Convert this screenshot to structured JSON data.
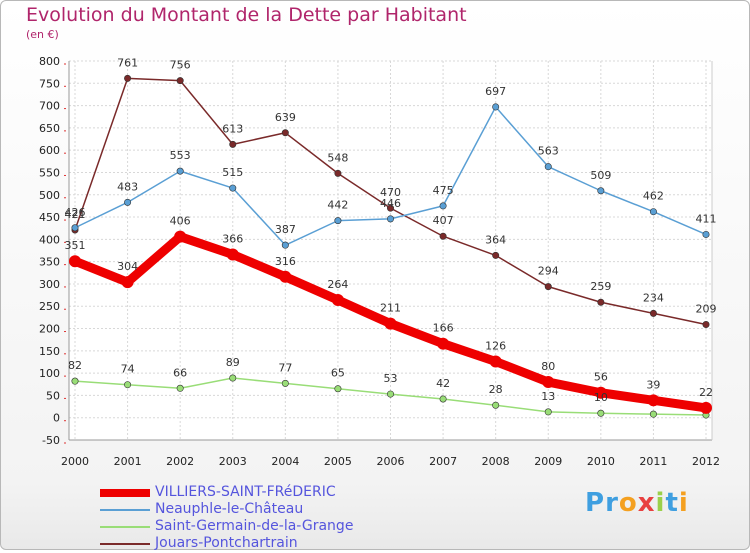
{
  "title": "Evolution du Montant de la Dette par Habitant",
  "subtitle": "(en €)",
  "logo": {
    "letters": [
      "P",
      "r",
      "o",
      "x",
      "i",
      "t",
      "i"
    ],
    "colors": [
      "#3f9fe0",
      "#3f9fe0",
      "#f4a020",
      "#e84040",
      "#9bd04a",
      "#3f9fe0",
      "#f4a020"
    ]
  },
  "chart_data": {
    "type": "line",
    "title": "Evolution du Montant de la Dette par Habitant",
    "ylabel": "(en €)",
    "xlabel": "",
    "x": [
      "2000",
      "2001",
      "2002",
      "2003",
      "2004",
      "2005",
      "2006",
      "2007",
      "2008",
      "2009",
      "2010",
      "2011",
      "2012"
    ],
    "ylim": [
      -50,
      800
    ],
    "yticks": [
      -50,
      0,
      50,
      100,
      150,
      200,
      250,
      300,
      350,
      400,
      450,
      500,
      550,
      600,
      650,
      700,
      750,
      800
    ],
    "grid": true,
    "legend_position": "bottom",
    "series": [
      {
        "name": "VILLIERS-SAINT-FRéDERIC",
        "color": "#ee0000",
        "values": [
          351,
          304,
          406,
          366,
          316,
          264,
          211,
          166,
          126,
          80,
          56,
          39,
          22
        ],
        "labels": [
          "351",
          "304",
          "406",
          "366",
          "316",
          "264",
          "211",
          "166",
          "126",
          "80",
          "56",
          "39",
          "22"
        ]
      },
      {
        "name": "Neauphle-le-Château",
        "color": "#5a9fd4",
        "values": [
          426,
          483,
          553,
          515,
          387,
          442,
          446,
          475,
          697,
          563,
          509,
          462,
          411
        ],
        "labels": [
          "426",
          "483",
          "553",
          "515",
          "387",
          "442",
          "446",
          "475",
          "697",
          "563",
          "509",
          "462",
          "411"
        ]
      },
      {
        "name": "Saint-Germain-de-la-Grange",
        "color": "#99dd77",
        "values": [
          82,
          74,
          66,
          89,
          77,
          65,
          53,
          42,
          28,
          13,
          10,
          8,
          6
        ],
        "labels": [
          "82",
          "74",
          "66",
          "89",
          "77",
          "65",
          "53",
          "42",
          "28",
          "13",
          "10",
          "",
          ""
        ]
      },
      {
        "name": "Jouars-Pontchartrain",
        "color": "#7a2a2a",
        "values": [
          421,
          761,
          756,
          613,
          639,
          548,
          470,
          407,
          364,
          294,
          259,
          234,
          209
        ],
        "labels": [
          "421",
          "761",
          "756",
          "613",
          "639",
          "548",
          "470",
          "407",
          "364",
          "294",
          "259",
          "234",
          "209"
        ]
      }
    ]
  }
}
